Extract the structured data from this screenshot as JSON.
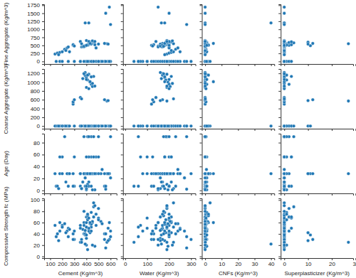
{
  "chart_data": {
    "type": "scatter",
    "color": "#1f77b4",
    "x_variables": [
      {
        "label": "Cement (Kg/m^3)",
        "xlim": [
          50,
          650
        ],
        "xticks": [
          100,
          200,
          300,
          400,
          500,
          600
        ],
        "values": [
          150,
          180,
          200,
          250,
          300,
          350,
          400,
          400,
          420,
          450,
          480,
          500,
          520,
          550,
          580,
          600,
          380,
          440,
          500,
          560,
          590,
          350,
          460,
          410,
          530,
          140,
          160,
          180,
          200,
          220,
          240,
          250,
          260,
          170,
          230,
          400,
          420,
          440,
          380,
          460,
          500,
          410,
          430,
          390,
          390,
          420,
          590,
          560,
          600,
          570,
          550,
          580,
          480,
          360,
          470,
          380,
          390,
          400,
          410,
          420,
          430,
          440,
          450,
          370,
          460,
          400,
          420,
          390,
          410,
          440,
          290,
          290,
          300,
          350,
          360,
          450,
          430,
          380,
          470,
          400
        ]
      },
      {
        "label": "Water (Kg/m^3)",
        "xlim": [
          -10,
          320
        ],
        "xticks": [
          0,
          100,
          200,
          300
        ],
        "values": [
          60,
          80,
          70,
          100,
          120,
          140,
          150,
          160,
          170,
          180,
          200,
          190,
          210,
          230,
          250,
          270,
          130,
          60,
          100,
          280,
          300,
          40,
          220,
          190,
          240,
          190,
          200,
          210,
          220,
          230,
          240,
          200,
          250,
          180,
          210,
          160,
          170,
          180,
          150,
          190,
          200,
          175,
          185,
          165,
          165,
          180,
          150,
          200,
          280,
          190,
          170,
          160,
          200,
          150,
          195,
          170,
          175,
          180,
          185,
          190,
          195,
          200,
          205,
          165,
          210,
          190,
          200,
          160,
          170,
          180,
          120,
          130,
          125,
          140,
          220,
          215,
          180,
          175,
          190,
          200
        ]
      },
      {
        "label": "CNFs (Kg/m^3)",
        "xlim": [
          -2,
          42
        ],
        "xticks": [
          0,
          10,
          20,
          30,
          40
        ],
        "values": [
          0,
          0.5,
          0.1,
          0,
          1,
          0.2,
          0.5,
          0,
          1,
          2,
          0.3,
          0,
          1.5,
          0.5,
          0,
          1,
          0.1,
          0,
          0.2,
          0,
          0.5,
          0,
          3,
          0,
          0.8,
          0,
          0.1,
          0.2,
          0,
          0.5,
          0,
          0.3,
          1,
          0,
          0,
          0.5,
          0,
          1,
          0.2,
          0,
          0.5,
          2,
          0.1,
          0,
          40,
          0,
          0,
          0,
          0,
          0,
          0,
          0,
          0.3,
          0,
          1,
          0,
          0.1,
          0.2,
          0,
          0.5,
          0,
          1,
          0,
          0.3,
          0,
          0,
          0.5,
          0,
          2,
          0,
          0,
          0.5,
          0,
          0,
          0.1,
          0,
          5,
          0,
          0,
          1
        ]
      },
      {
        "label": "Superplasticizer (Kg/m^3)",
        "xlim": [
          -1.5,
          29
        ],
        "xticks": [
          0,
          10,
          20,
          30
        ],
        "values": [
          0,
          0,
          0,
          0,
          0,
          0,
          1,
          0,
          0,
          0,
          0,
          2,
          0,
          0,
          0,
          0,
          0,
          0,
          3,
          0,
          0,
          0,
          0,
          0,
          0,
          0,
          0,
          0,
          0,
          0,
          0,
          0,
          0,
          0,
          0,
          2,
          3,
          1,
          0,
          4,
          0,
          0,
          10,
          11,
          0,
          0,
          0,
          0,
          0,
          27,
          12,
          10,
          0,
          0,
          0,
          0,
          0,
          0,
          1,
          0,
          0,
          2,
          0,
          0,
          3,
          0,
          0,
          0,
          1,
          0,
          0,
          0,
          0,
          0,
          0,
          0,
          0,
          0,
          0,
          0
        ]
      }
    ],
    "y_variables": [
      {
        "label": "Fine Aggregate (Kg/m^3)",
        "ylim": [
          -80,
          1780
        ],
        "yticks": [
          0,
          250,
          500,
          750,
          1000,
          1250,
          1500,
          1750
        ],
        "values": [
          0,
          0,
          0,
          0,
          0,
          0,
          0,
          0,
          0,
          0,
          0,
          0,
          0,
          0,
          0,
          0,
          0,
          0,
          0,
          0,
          0,
          0,
          0,
          0,
          0,
          230,
          260,
          280,
          300,
          380,
          420,
          450,
          300,
          210,
          340,
          500,
          520,
          550,
          480,
          580,
          540,
          500,
          600,
          490,
          1200,
          1200,
          1690,
          1500,
          1150,
          550,
          560,
          540,
          420,
          450,
          520,
          450,
          480,
          500,
          520,
          550,
          570,
          590,
          600,
          460,
          610,
          650,
          620,
          480,
          510,
          540,
          500,
          520,
          480,
          620,
          550,
          640,
          560,
          470,
          620,
          500
        ]
      },
      {
        "label": "Coarse Aggregate (Kg/m^3)",
        "ylim": [
          -60,
          1300
        ],
        "yticks": [
          0,
          200,
          400,
          600,
          800,
          1000,
          1200
        ],
        "values": [
          0,
          0,
          0,
          0,
          0,
          0,
          0,
          0,
          0,
          0,
          0,
          0,
          0,
          0,
          0,
          0,
          0,
          0,
          0,
          0,
          0,
          0,
          0,
          0,
          0,
          0,
          0,
          0,
          0,
          0,
          0,
          0,
          0,
          0,
          0,
          0,
          0,
          0,
          0,
          0,
          0,
          0,
          0,
          0,
          0,
          0,
          0,
          0,
          0,
          570,
          600,
          580,
          0,
          0,
          0,
          1200,
          1150,
          1100,
          1050,
          1180,
          1000,
          950,
          900,
          1080,
          1130,
          880,
          850,
          1220,
          1160,
          1120,
          500,
          550,
          600,
          650,
          620,
          970,
          1010,
          1190,
          910,
          1060
        ]
      },
      {
        "label": "Age (Day)",
        "ylim": [
          -5,
          95
        ],
        "yticks": [
          0,
          20,
          40,
          60,
          80
        ],
        "values": [
          7,
          28,
          56,
          28,
          7,
          28,
          1,
          3,
          14,
          28,
          56,
          90,
          28,
          7,
          28,
          21,
          28,
          90,
          56,
          2,
          28,
          7,
          28,
          10,
          35,
          28,
          7,
          56,
          28,
          90,
          28,
          7,
          28,
          3,
          14,
          28,
          7,
          56,
          28,
          90,
          28,
          28,
          28,
          28,
          28,
          56,
          28,
          7,
          90,
          28,
          28,
          28,
          28,
          3,
          1,
          28,
          7,
          56,
          90,
          28,
          28,
          7,
          28,
          14,
          56,
          28,
          90,
          21,
          28,
          28,
          28,
          7,
          56,
          28,
          3,
          1,
          28,
          90,
          28,
          7
        ]
      },
      {
        "label": "Compressive Strength fc (MPa)",
        "ylim": [
          -3,
          103
        ],
        "yticks": [
          0,
          20,
          40,
          60,
          80,
          100
        ],
        "values": [
          35,
          45,
          55,
          50,
          30,
          55,
          20,
          32,
          48,
          60,
          75,
          85,
          62,
          40,
          50,
          45,
          40,
          52,
          68,
          15,
          30,
          25,
          95,
          12,
          58,
          55,
          40,
          60,
          52,
          58,
          45,
          35,
          48,
          28,
          42,
          70,
          50,
          78,
          60,
          88,
          65,
          72,
          42,
          38,
          22,
          45,
          60,
          40,
          35,
          25,
          30,
          28,
          55,
          30,
          18,
          55,
          40,
          60,
          65,
          50,
          58,
          45,
          62,
          48,
          70,
          52,
          68,
          46,
          75,
          57,
          40,
          30,
          45,
          50,
          25,
          20,
          60,
          80,
          90,
          38
        ]
      }
    ]
  }
}
